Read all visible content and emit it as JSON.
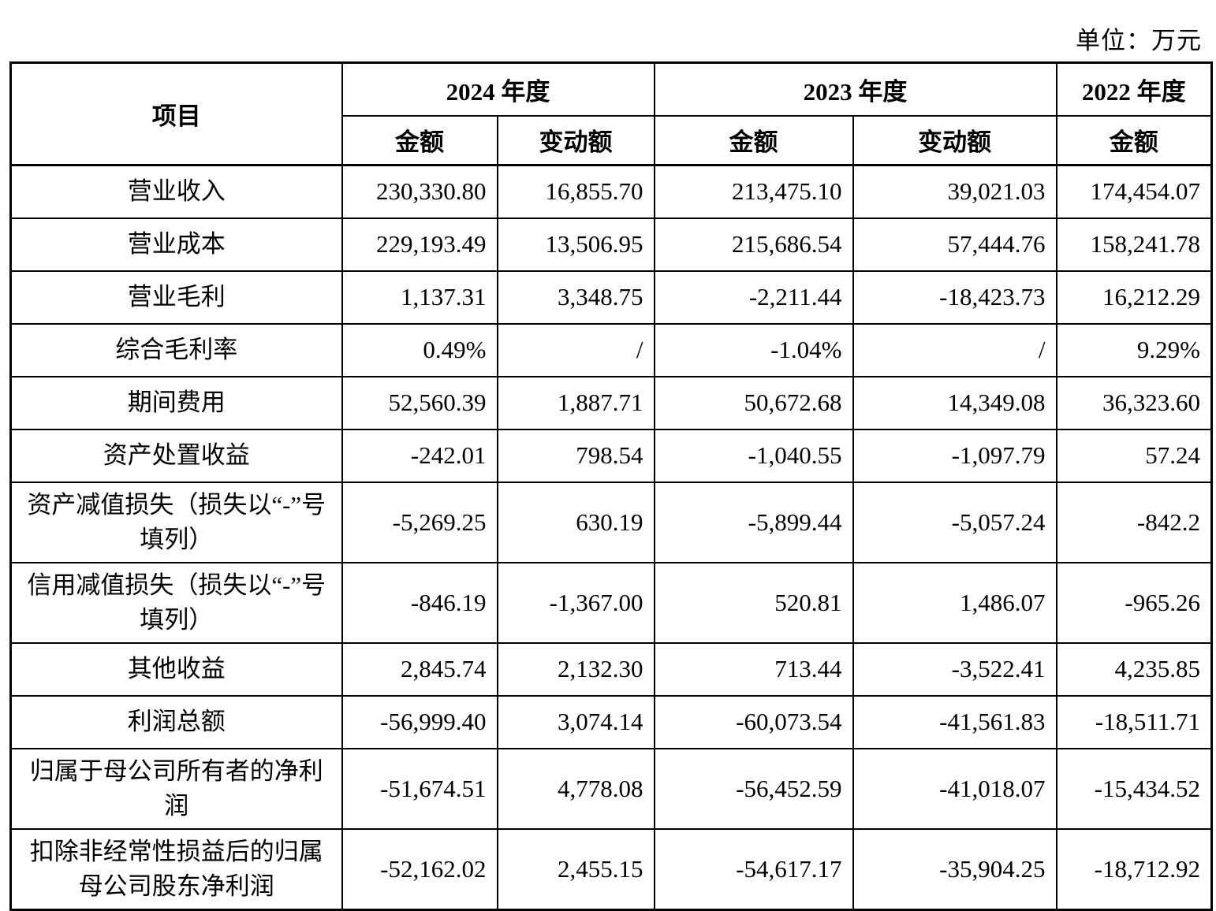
{
  "unit_label": "单位：万元",
  "table": {
    "header": {
      "item_label": "项目",
      "col_groups": [
        {
          "label": "2024 年度",
          "subcols": [
            "金额",
            "变动额"
          ]
        },
        {
          "label": "2023 年度",
          "subcols": [
            "金额",
            "变动额"
          ]
        },
        {
          "label": "2022 年度",
          "subcols": [
            "金额"
          ]
        }
      ]
    },
    "rows": [
      {
        "label": "营业收入",
        "values": [
          "230,330.80",
          "16,855.70",
          "213,475.10",
          "39,021.03",
          "174,454.07"
        ]
      },
      {
        "label": "营业成本",
        "values": [
          "229,193.49",
          "13,506.95",
          "215,686.54",
          "57,444.76",
          "158,241.78"
        ]
      },
      {
        "label": "营业毛利",
        "values": [
          "1,137.31",
          "3,348.75",
          "-2,211.44",
          "-18,423.73",
          "16,212.29"
        ]
      },
      {
        "label": "综合毛利率",
        "values": [
          "0.49%",
          "/",
          "-1.04%",
          "/",
          "9.29%"
        ]
      },
      {
        "label": "期间费用",
        "values": [
          "52,560.39",
          "1,887.71",
          "50,672.68",
          "14,349.08",
          "36,323.60"
        ]
      },
      {
        "label": "资产处置收益",
        "values": [
          "-242.01",
          "798.54",
          "-1,040.55",
          "-1,097.79",
          "57.24"
        ]
      },
      {
        "label": "资产减值损失（损失以“-”号填列）",
        "values": [
          "-5,269.25",
          "630.19",
          "-5,899.44",
          "-5,057.24",
          "-842.2"
        ]
      },
      {
        "label": "信用减值损失（损失以“-”号填列）",
        "values": [
          "-846.19",
          "-1,367.00",
          "520.81",
          "1,486.07",
          "-965.26"
        ]
      },
      {
        "label": "其他收益",
        "values": [
          "2,845.74",
          "2,132.30",
          "713.44",
          "-3,522.41",
          "4,235.85"
        ]
      },
      {
        "label": "利润总额",
        "values": [
          "-56,999.40",
          "3,074.14",
          "-60,073.54",
          "-41,561.83",
          "-18,511.71"
        ]
      },
      {
        "label": "归属于母公司所有者的净利润",
        "values": [
          "-51,674.51",
          "4,778.08",
          "-56,452.59",
          "-41,018.07",
          "-15,434.52"
        ]
      },
      {
        "label": "扣除非经常性损益后的归属母公司股东净利润",
        "values": [
          "-52,162.02",
          "2,455.15",
          "-54,617.17",
          "-35,904.25",
          "-18,712.92"
        ]
      }
    ]
  }
}
